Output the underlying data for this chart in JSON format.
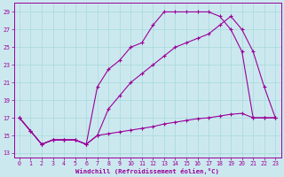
{
  "xlabel": "Windchill (Refroidissement éolien,°C)",
  "bg_color": "#cce8ef",
  "line_color": "#990099",
  "grid_color": "#aadddd",
  "xlim": [
    -0.5,
    23.5
  ],
  "ylim": [
    12.5,
    30
  ],
  "yticks": [
    13,
    15,
    17,
    19,
    21,
    23,
    25,
    27,
    29
  ],
  "xticks": [
    0,
    1,
    2,
    3,
    4,
    5,
    6,
    7,
    8,
    9,
    10,
    11,
    12,
    13,
    14,
    15,
    16,
    17,
    18,
    19,
    20,
    21,
    22,
    23
  ],
  "line1_x": [
    0,
    1,
    2,
    3,
    4,
    5,
    6,
    7,
    8,
    9,
    10,
    11,
    12,
    13,
    14,
    15,
    16,
    17,
    18,
    19,
    20,
    21,
    22,
    23
  ],
  "line1_y": [
    17,
    15.5,
    14,
    14.5,
    14.5,
    14.5,
    14,
    15.0,
    15.2,
    15.4,
    15.6,
    15.8,
    16.0,
    16.3,
    16.5,
    16.7,
    16.9,
    17.0,
    17.2,
    17.4,
    17.5,
    17.0,
    17.0,
    17.0
  ],
  "line2_x": [
    0,
    1,
    2,
    3,
    4,
    5,
    6,
    7,
    8,
    9,
    10,
    11,
    12,
    13,
    14,
    15,
    16,
    17,
    18,
    19,
    20,
    21,
    22,
    23
  ],
  "line2_y": [
    17,
    15.5,
    14,
    14.5,
    14.5,
    14.5,
    14,
    20.5,
    22.5,
    23.5,
    25,
    25.5,
    27.5,
    29,
    29,
    29,
    29,
    29,
    28.5,
    27,
    24.5,
    17,
    17,
    17
  ],
  "line3_x": [
    0,
    1,
    2,
    3,
    4,
    5,
    6,
    7,
    8,
    9,
    10,
    11,
    12,
    13,
    14,
    15,
    16,
    17,
    18,
    19,
    20,
    21,
    22,
    23
  ],
  "line3_y": [
    17,
    15.5,
    14,
    14.5,
    14.5,
    14.5,
    14,
    15.0,
    18.0,
    19.5,
    21.0,
    22.0,
    23.0,
    24.0,
    25.0,
    25.5,
    26.0,
    26.5,
    27.5,
    28.5,
    27.0,
    24.5,
    20.5,
    17.0
  ]
}
